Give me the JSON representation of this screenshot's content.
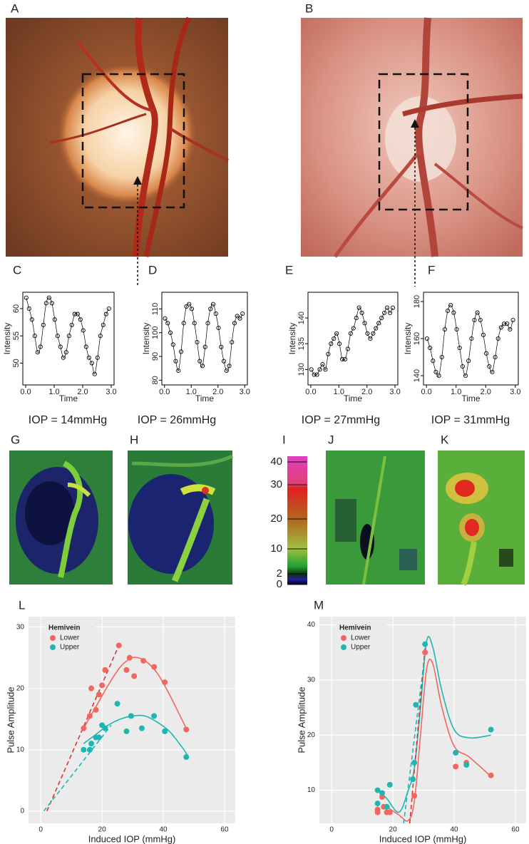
{
  "panel_labels": [
    "A",
    "B",
    "C",
    "D",
    "E",
    "F",
    "G",
    "H",
    "I",
    "J",
    "K",
    "L",
    "M"
  ],
  "iop_labels": [
    "IOP = 14mmHg",
    "IOP = 26mmHg",
    "IOP = 27mmHg",
    "IOP = 31mmHg"
  ],
  "colorbar": {
    "ticks": [
      40,
      30,
      20,
      10,
      2,
      0
    ]
  },
  "chart_data": [
    {
      "type": "scatter",
      "curve": "smooth",
      "xlabel": "Time",
      "ylabel": "Intensity",
      "x": [
        0.02,
        0.12,
        0.22,
        0.32,
        0.42,
        0.52,
        0.62,
        0.72,
        0.82,
        0.92,
        1.02,
        1.12,
        1.22,
        1.32,
        1.42,
        1.52,
        1.62,
        1.72,
        1.82,
        1.92,
        2.02,
        2.12,
        2.22,
        2.32,
        2.42,
        2.52,
        2.62,
        2.72,
        2.82,
        2.92
      ],
      "series": [
        {
          "color": "#000000",
          "values": [
            62,
            60,
            58,
            55,
            52,
            53,
            57,
            61,
            62,
            61,
            58,
            55,
            53,
            51,
            52,
            55,
            57,
            59,
            59,
            58,
            56,
            53,
            51,
            50,
            48,
            51,
            55,
            57,
            59,
            60
          ]
        }
      ],
      "xlim": [
        -0.1,
        3.1
      ],
      "ylim": [
        46,
        63
      ],
      "xticks": [
        {
          "value": 0,
          "label": "0.0"
        },
        {
          "value": 1,
          "label": "1.0"
        },
        {
          "value": 2,
          "label": "2.0"
        },
        {
          "value": 3,
          "label": "3.0"
        }
      ],
      "yticks": [
        50,
        55,
        60
      ]
    },
    {
      "type": "scatter",
      "curve": "smooth",
      "xlabel": "Time",
      "ylabel": "Intensity",
      "x": [
        0.02,
        0.12,
        0.22,
        0.32,
        0.42,
        0.52,
        0.62,
        0.72,
        0.82,
        0.92,
        1.02,
        1.12,
        1.22,
        1.32,
        1.42,
        1.52,
        1.62,
        1.72,
        1.82,
        1.92,
        2.02,
        2.12,
        2.22,
        2.32,
        2.42,
        2.52,
        2.62,
        2.72,
        2.82,
        2.92
      ],
      "series": [
        {
          "color": "#000000",
          "values": [
            106,
            104,
            100,
            95,
            88,
            84,
            92,
            104,
            111,
            112,
            110,
            104,
            96,
            88,
            86,
            94,
            104,
            110,
            112,
            108,
            102,
            94,
            88,
            84,
            86,
            96,
            104,
            107,
            106,
            108
          ]
        }
      ],
      "xlim": [
        -0.1,
        3.1
      ],
      "ylim": [
        78,
        117
      ],
      "xticks": [
        {
          "value": 0,
          "label": "0.0"
        },
        {
          "value": 1,
          "label": "1.0"
        },
        {
          "value": 2,
          "label": "2.0"
        },
        {
          "value": 3,
          "label": "3.0"
        }
      ],
      "yticks": [
        80,
        90,
        100,
        110
      ]
    },
    {
      "type": "scatter",
      "curve": "smooth",
      "xlabel": "Time",
      "ylabel": "Intensity",
      "x": [
        0.02,
        0.12,
        0.22,
        0.32,
        0.42,
        0.52,
        0.62,
        0.72,
        0.82,
        0.92,
        1.02,
        1.12,
        1.22,
        1.32,
        1.42,
        1.52,
        1.62,
        1.72,
        1.82,
        1.92,
        2.02,
        2.12,
        2.22,
        2.32,
        2.42,
        2.52,
        2.62,
        2.72,
        2.82,
        2.92
      ],
      "series": [
        {
          "color": "#000000",
          "values": [
            130,
            129,
            129,
            130,
            131,
            130,
            133,
            135,
            136,
            137,
            135,
            132,
            132,
            134,
            137,
            138,
            140,
            142,
            141,
            139,
            137,
            136,
            137,
            138,
            139,
            140,
            141,
            142,
            141,
            142
          ]
        }
      ],
      "xlim": [
        -0.1,
        3.1
      ],
      "ylim": [
        127,
        145
      ],
      "xticks": [
        {
          "value": 0,
          "label": "0.0"
        },
        {
          "value": 1,
          "label": "1.0"
        },
        {
          "value": 2,
          "label": "2.0"
        },
        {
          "value": 3,
          "label": "3.0"
        }
      ],
      "yticks": [
        130,
        135,
        140
      ]
    },
    {
      "type": "scatter",
      "curve": "smooth",
      "xlabel": "Time",
      "ylabel": "Intensity",
      "x": [
        0.02,
        0.12,
        0.22,
        0.32,
        0.42,
        0.52,
        0.62,
        0.72,
        0.82,
        0.92,
        1.02,
        1.12,
        1.22,
        1.32,
        1.42,
        1.52,
        1.62,
        1.72,
        1.82,
        1.92,
        2.02,
        2.12,
        2.22,
        2.32,
        2.42,
        2.52,
        2.62,
        2.72,
        2.82,
        2.92
      ],
      "series": [
        {
          "color": "#000000",
          "values": [
            160,
            155,
            148,
            142,
            140,
            150,
            165,
            175,
            178,
            174,
            165,
            155,
            145,
            140,
            148,
            160,
            170,
            174,
            170,
            162,
            152,
            145,
            142,
            150,
            160,
            166,
            168,
            168,
            165,
            170
          ]
        }
      ],
      "xlim": [
        -0.1,
        3.1
      ],
      "ylim": [
        135,
        185
      ],
      "xticks": [
        {
          "value": 0,
          "label": "0.0"
        },
        {
          "value": 1,
          "label": "1.0"
        },
        {
          "value": 2,
          "label": "2.0"
        },
        {
          "value": 3,
          "label": "3.0"
        }
      ],
      "yticks": [
        140,
        160,
        180
      ]
    },
    {
      "type": "scatter",
      "xlabel": "Induced IOP (mmHg)",
      "ylabel": "Pulse Amplitude",
      "legend_title": "Hemivein",
      "grid": true,
      "background": "#ebebeb",
      "series": [
        {
          "name": "Lower",
          "color": "#f0675f",
          "x": [
            14,
            16,
            16.5,
            18,
            19,
            20,
            21,
            25.5,
            28,
            29,
            30.5,
            33.5,
            37,
            40.5,
            47.5
          ],
          "values": [
            13.5,
            15.5,
            20,
            16.5,
            19,
            20.5,
            23,
            27,
            23,
            25,
            22,
            24.5,
            23.5,
            21,
            13.3
          ]
        },
        {
          "name": "Upper",
          "color": "#1fb5b3",
          "x": [
            14,
            16,
            16.5,
            18,
            19,
            20,
            21,
            25,
            28,
            29.5,
            33,
            37,
            40.5,
            47.5
          ],
          "values": [
            10,
            10,
            11,
            12,
            12,
            14,
            13.5,
            17.5,
            13,
            15.5,
            13.5,
            15.5,
            13,
            8.8
          ]
        }
      ],
      "fits": [
        {
          "color": "#f0675f",
          "dash": false,
          "x": [
            14,
            18,
            22,
            26,
            30,
            34,
            38,
            42,
            46,
            48
          ],
          "values": [
            13.5,
            17,
            20.5,
            23.5,
            25,
            24.5,
            22.5,
            19,
            15,
            13
          ]
        },
        {
          "color": "#1fb5b3",
          "dash": false,
          "x": [
            14,
            18,
            22,
            26,
            30,
            34,
            38,
            42,
            46,
            48
          ],
          "values": [
            11,
            12.5,
            14,
            15,
            15.5,
            15.5,
            14.5,
            13,
            10.5,
            9
          ]
        },
        {
          "color": "#e03030",
          "dash": true,
          "x": [
            2,
            25.5
          ],
          "values": [
            0,
            27
          ]
        },
        {
          "color": "#1fb5b3",
          "dash": true,
          "x": [
            1,
            23
          ],
          "values": [
            0,
            14
          ]
        }
      ],
      "xlim": [
        -4,
        63.5
      ],
      "ylim": [
        -2,
        31.7
      ],
      "xticks": [
        0,
        20,
        40,
        60
      ],
      "yticks": [
        0,
        10,
        20,
        30
      ]
    },
    {
      "type": "scatter",
      "xlabel": "Induced IOP (mmHg)",
      "ylabel": "Pulse Amplitude",
      "legend_title": "Hemivein",
      "grid": true,
      "background": "#ebebeb",
      "series": [
        {
          "name": "Lower",
          "color": "#f0675f",
          "x": [
            15,
            15,
            16.5,
            17,
            18,
            19,
            27,
            30.5,
            40.5,
            44,
            52
          ],
          "values": [
            6,
            6.5,
            8.8,
            7,
            6,
            6,
            9,
            35,
            14.3,
            15,
            12.7
          ]
        },
        {
          "name": "Upper",
          "color": "#1fb5b3",
          "x": [
            15,
            15,
            16.5,
            18,
            19,
            26.5,
            27,
            27.5,
            30.5,
            40.5,
            44,
            52
          ],
          "values": [
            7.6,
            10,
            9.5,
            7,
            11,
            12,
            15,
            25.5,
            36.5,
            16.8,
            14.6,
            21
          ]
        }
      ],
      "fits": [
        {
          "color": "#f0675f",
          "dash": false,
          "x": [
            18,
            22,
            25,
            27,
            29,
            31,
            33,
            36,
            40,
            45,
            52
          ],
          "values": [
            7,
            5.5,
            4.5,
            8,
            20,
            32,
            33,
            25,
            18,
            16,
            12.5
          ]
        },
        {
          "color": "#1fb5b3",
          "dash": false,
          "x": [
            15,
            18,
            22,
            25,
            27,
            29,
            31,
            33,
            36,
            40,
            45,
            52
          ],
          "values": [
            10,
            8.5,
            6,
            10,
            14,
            25,
            37,
            36,
            28,
            21,
            19.5,
            20
          ]
        },
        {
          "color": "#e03030",
          "dash": true,
          "x": [
            25.5,
            30.5
          ],
          "values": [
            4,
            36
          ]
        },
        {
          "color": "#1fb5b3",
          "dash": true,
          "x": [
            23.5,
            31
          ],
          "values": [
            4,
            37
          ]
        }
      ],
      "xlim": [
        -4,
        63.5
      ],
      "ylim": [
        4,
        41.5
      ],
      "xticks": [
        0,
        20,
        40,
        60
      ],
      "yticks": [
        10,
        20,
        30,
        40
      ]
    }
  ]
}
